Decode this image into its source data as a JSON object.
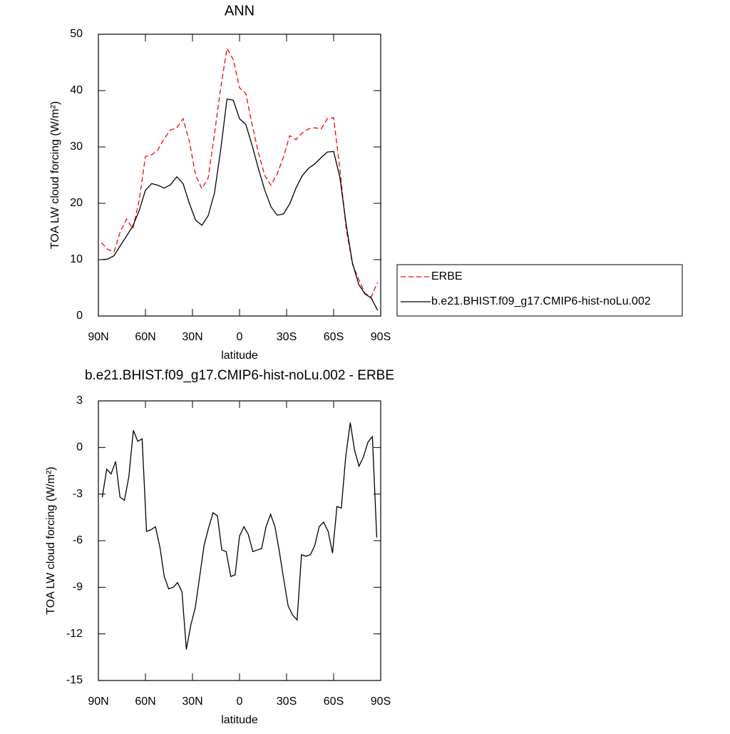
{
  "chart_data": [
    {
      "type": "line",
      "title": "ANN",
      "x_label": "latitude",
      "y_label": "TOA LW cloud forcing (W/m²)",
      "x": [
        88,
        84,
        80,
        76,
        72,
        68,
        64,
        60,
        56,
        52,
        48,
        44,
        40,
        36,
        32,
        28,
        24,
        20,
        16,
        12,
        8,
        4,
        0,
        -4,
        -8,
        -12,
        -16,
        -20,
        -24,
        -28,
        -32,
        -36,
        -40,
        -44,
        -48,
        -52,
        -56,
        -60,
        -64,
        -68,
        -72,
        -76,
        -80,
        -84,
        -88
      ],
      "series": [
        {
          "name": "ERBE",
          "color": "#ff0000",
          "linestyle": "dashed",
          "values": [
            13.0,
            11.8,
            11.4,
            15.0,
            17.2,
            15.5,
            20.5,
            28.3,
            28.6,
            29.5,
            31.5,
            33.0,
            33.4,
            35.0,
            31.0,
            25.0,
            22.6,
            24.5,
            32.3,
            40.5,
            47.5,
            45.5,
            40.5,
            39.5,
            34.0,
            29.0,
            25.0,
            23.2,
            25.2,
            28.2,
            32.0,
            31.3,
            32.5,
            33.2,
            33.4,
            33.2,
            35.0,
            35.2,
            26.0,
            15.5,
            9.2,
            6.5,
            4.0,
            3.4,
            6.0
          ]
        },
        {
          "name": "b.e21.BHIST.f09_g17.CMIP6-hist-noLu.002",
          "color": "#000000",
          "linestyle": "solid",
          "values": [
            10.0,
            10.1,
            10.7,
            12.5,
            14.2,
            16.0,
            18.7,
            22.3,
            23.5,
            23.2,
            22.7,
            23.3,
            24.7,
            23.5,
            20.0,
            17.0,
            16.1,
            17.8,
            21.8,
            29.5,
            38.5,
            38.3,
            35.0,
            34.0,
            30.3,
            26.2,
            22.4,
            19.4,
            17.9,
            18.1,
            19.9,
            22.7,
            24.9,
            26.2,
            27.0,
            28.1,
            29.1,
            29.2,
            24.6,
            16.2,
            9.4,
            5.6,
            3.9,
            3.2,
            1.0
          ]
        }
      ],
      "xlim": [
        90,
        -90
      ],
      "xticks": [
        {
          "value": 90,
          "label": "90N"
        },
        {
          "value": 60,
          "label": "60N"
        },
        {
          "value": 30,
          "label": "30N"
        },
        0,
        {
          "value": -30,
          "label": "30S"
        },
        {
          "value": -60,
          "label": "60S"
        },
        {
          "value": -90,
          "label": "90S"
        }
      ],
      "ylim": [
        0,
        50
      ],
      "yticks": [
        0,
        10,
        20,
        30,
        40,
        50
      ],
      "legend": "right"
    },
    {
      "type": "line",
      "title": "b.e21.BHIST.f09_g17.CMIP6-hist-noLu.002 - ERBE",
      "x_label": "latitude",
      "y_label": "TOA LW cloud forcing (W/m²)",
      "x": [
        87.5,
        84.7,
        81.9,
        79.0,
        76.2,
        73.4,
        70.6,
        67.7,
        64.9,
        62.1,
        59.3,
        56.5,
        53.6,
        50.8,
        48.0,
        45.2,
        42.3,
        39.5,
        36.7,
        33.9,
        31.0,
        28.2,
        25.4,
        22.6,
        19.8,
        16.9,
        14.1,
        11.3,
        8.5,
        5.6,
        2.8,
        0.0,
        -2.8,
        -5.6,
        -8.5,
        -11.3,
        -14.1,
        -16.9,
        -19.8,
        -22.6,
        -25.4,
        -28.2,
        -31.0,
        -33.9,
        -36.7,
        -39.5,
        -42.3,
        -45.2,
        -48.0,
        -50.8,
        -53.6,
        -56.5,
        -59.3,
        -62.1,
        -64.9,
        -67.7,
        -70.6,
        -73.4,
        -76.2,
        -79.0,
        -81.9,
        -84.7,
        -87.5
      ],
      "series": [
        {
          "color": "#000000",
          "linestyle": "solid",
          "values": [
            -3.2,
            -1.4,
            -1.7,
            -0.9,
            -3.2,
            -3.4,
            -1.9,
            1.1,
            0.4,
            0.55,
            -5.4,
            -5.3,
            -5.1,
            -6.4,
            -8.3,
            -9.1,
            -9.0,
            -8.7,
            -9.3,
            -13,
            -11.4,
            -10.3,
            -8.3,
            -6.3,
            -5.2,
            -4.2,
            -4.4,
            -6.6,
            -6.7,
            -8.3,
            -8.2,
            -5.7,
            -5.1,
            -5.6,
            -6.7,
            -6.6,
            -6.5,
            -5.1,
            -4.3,
            -5.1,
            -6.7,
            -8.5,
            -10.2,
            -10.8,
            -11.1,
            -6.9,
            -7.0,
            -6.9,
            -6.3,
            -5.1,
            -4.8,
            -5.4,
            -6.8,
            -3.8,
            -3.9,
            -0.6,
            1.6,
            -0.2,
            -1.2,
            -0.6,
            0.35,
            0.7,
            -5.8
          ]
        }
      ],
      "xlim": [
        90,
        -90
      ],
      "xticks": [
        {
          "value": 90,
          "label": "90N"
        },
        {
          "value": 60,
          "label": "60N"
        },
        {
          "value": 30,
          "label": "30N"
        },
        0,
        {
          "value": -30,
          "label": "30S"
        },
        {
          "value": -60,
          "label": "60S"
        },
        {
          "value": -90,
          "label": "90S"
        }
      ],
      "ylim": [
        -15,
        3
      ],
      "yticks": [
        -15,
        -12,
        -9,
        -6,
        -3,
        0,
        3
      ]
    }
  ]
}
